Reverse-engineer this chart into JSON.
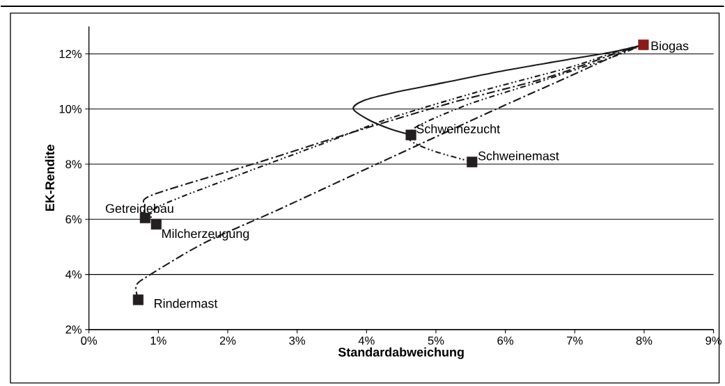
{
  "chart_data": {
    "type": "line",
    "xlabel": "Standardabweichung",
    "ylabel": "EK-Rendite",
    "xlim": [
      0,
      9
    ],
    "ylim": [
      2,
      13
    ],
    "xticks": [
      {
        "value": 0,
        "label": "0%"
      },
      {
        "value": 1,
        "label": "1%"
      },
      {
        "value": 2,
        "label": "2%"
      },
      {
        "value": 3,
        "label": "3%"
      },
      {
        "value": 4,
        "label": "4%"
      },
      {
        "value": 5,
        "label": "5%"
      },
      {
        "value": 6,
        "label": "6%"
      },
      {
        "value": 7,
        "label": "7%"
      },
      {
        "value": 8,
        "label": "8%"
      },
      {
        "value": 9,
        "label": "9%"
      }
    ],
    "yticks": [
      {
        "value": 2,
        "label": "2%"
      },
      {
        "value": 4,
        "label": "4%"
      },
      {
        "value": 6,
        "label": "6%"
      },
      {
        "value": 8,
        "label": "8%"
      },
      {
        "value": 10,
        "label": "10%"
      },
      {
        "value": 12,
        "label": "12%"
      }
    ],
    "grid": "y",
    "series": [
      {
        "color": "#1a1a1a",
        "line_style": "solid",
        "marker": "none",
        "x": [
          4.64,
          4.33,
          4.03,
          3.81,
          3.95,
          4.4,
          5.1,
          6.0,
          6.91,
          7.5,
          7.99
        ],
        "values": [
          9.06,
          9.29,
          9.61,
          10.0,
          10.3,
          10.6,
          10.95,
          11.4,
          11.8,
          12.05,
          12.33
        ]
      },
      {
        "color": "#1a1a1a",
        "line_style": "dotted",
        "marker": "none",
        "x": [
          5.52,
          5.0,
          4.7,
          4.6,
          4.75,
          5.5,
          6.5,
          7.5,
          7.99
        ],
        "values": [
          8.08,
          8.45,
          8.75,
          9.0,
          9.4,
          10.2,
          11.0,
          11.85,
          12.33
        ]
      },
      {
        "color": "#1a1a1a",
        "line_style": "dashed",
        "marker": "none",
        "x": [
          0.81,
          0.8,
          0.93,
          2.46,
          3.8,
          4.23,
          5.24,
          6.57,
          7.57,
          7.99
        ],
        "values": [
          6.05,
          6.5,
          6.9,
          8.08,
          9.16,
          9.49,
          10.24,
          11.12,
          12.0,
          12.33
        ]
      },
      {
        "color": "#1a1a1a",
        "line_style": "dotted",
        "marker": "none",
        "x": [
          0.97,
          0.96,
          2.13,
          3.46,
          4.33,
          5.57,
          6.91,
          7.57,
          7.99
        ],
        "values": [
          5.82,
          6.4,
          7.58,
          8.83,
          9.66,
          10.6,
          11.5,
          12.05,
          12.33
        ]
      },
      {
        "color": "#1a1a1a",
        "line_style": "dashed",
        "marker": "none",
        "x": [
          0.71,
          0.68,
          0.83,
          1.66,
          2.73,
          4.1,
          4.23,
          5.87,
          6.91,
          7.61,
          7.99
        ],
        "values": [
          3.08,
          3.58,
          3.91,
          5.14,
          6.35,
          7.95,
          8.1,
          10.0,
          11.17,
          11.97,
          12.33
        ]
      },
      {
        "type": "scatter",
        "marker": "square",
        "x": [
          7.99,
          4.64,
          5.52,
          0.81,
          0.97,
          0.71
        ],
        "values": [
          12.33,
          9.06,
          8.08,
          6.05,
          5.82,
          3.08
        ],
        "colors": [
          "#8b1a1a",
          "#231f20",
          "#231f20",
          "#231f20",
          "#231f20",
          "#231f20"
        ]
      }
    ],
    "annotations": [
      {
        "text": "Biogas",
        "x": 7.99,
        "y": 12.33
      },
      {
        "text": "Schweinezucht",
        "x": 4.64,
        "y": 9.06
      },
      {
        "text": "Schweinemast",
        "x": 5.52,
        "y": 8.08
      },
      {
        "text": "Getreidebau",
        "x": 0.81,
        "y": 6.05
      },
      {
        "text": "Milcherzeugung",
        "x": 0.97,
        "y": 5.82
      },
      {
        "text": "Rindermast",
        "x": 0.71,
        "y": 3.08
      }
    ]
  }
}
